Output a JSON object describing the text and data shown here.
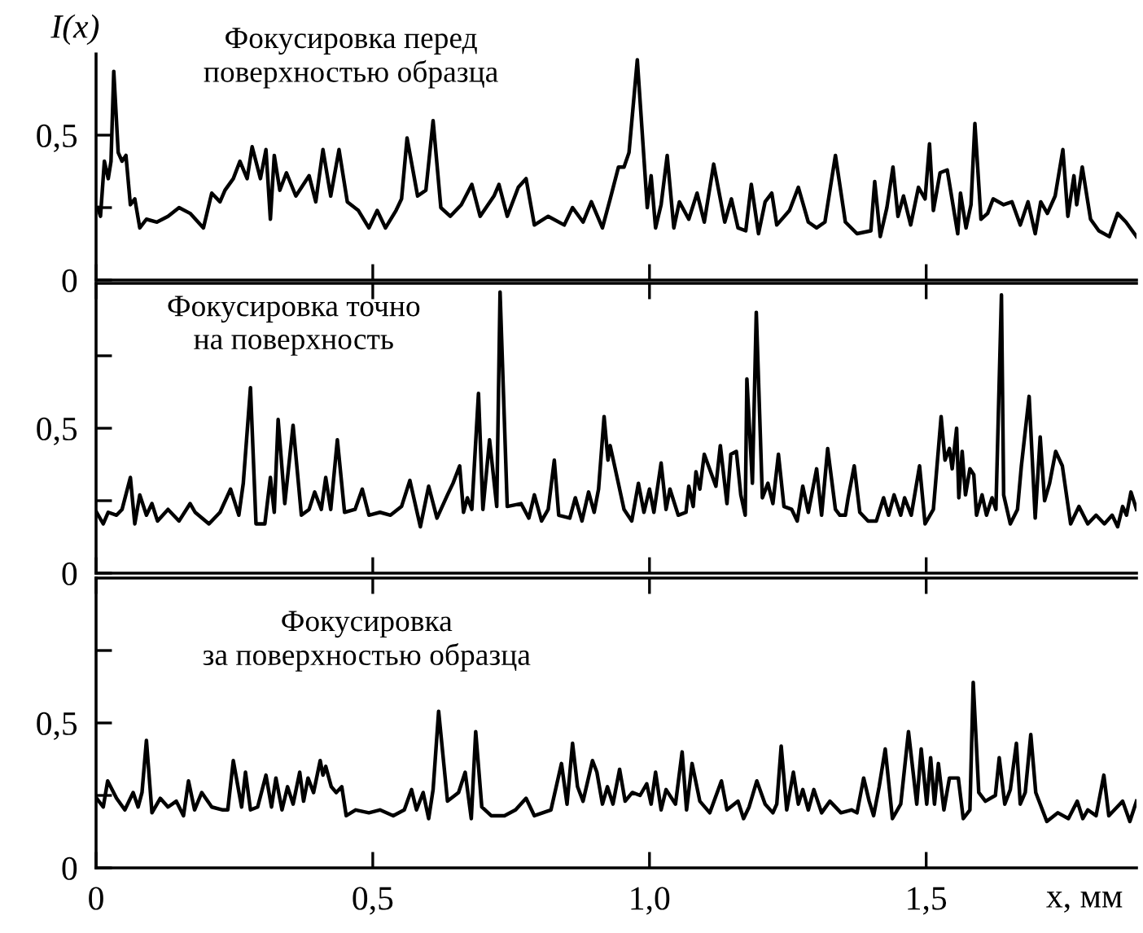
{
  "chart_data": [
    {
      "type": "line",
      "ylabel": "I(x)",
      "annotations": [
        "Фокусировка перед\nповерхностью образца"
      ],
      "xlim": [
        0,
        1.88
      ],
      "ylim": [
        0,
        0.78
      ],
      "xticks": [
        {
          "value": 0,
          "label": null
        },
        {
          "value": 0.5,
          "label": null
        },
        {
          "value": 1.0,
          "label": null
        },
        {
          "value": 1.5,
          "label": null
        }
      ],
      "yticks": [
        0,
        {
          "value": 0.25,
          "label": null
        },
        {
          "value": 0.5,
          "label": "0,5"
        }
      ],
      "tick_labels": "y",
      "series": [
        {
          "color": "#000000",
          "x": [
            0.003,
            0.008,
            0.015,
            0.022,
            0.027,
            0.032,
            0.04,
            0.047,
            0.054,
            0.062,
            0.07,
            0.079,
            0.091,
            0.11,
            0.13,
            0.15,
            0.17,
            0.194,
            0.209,
            0.224,
            0.233,
            0.248,
            0.26,
            0.273,
            0.282,
            0.297,
            0.307,
            0.315,
            0.322,
            0.332,
            0.344,
            0.361,
            0.385,
            0.397,
            0.41,
            0.424,
            0.439,
            0.454,
            0.474,
            0.493,
            0.508,
            0.523,
            0.542,
            0.552,
            0.562,
            0.581,
            0.596,
            0.609,
            0.623,
            0.64,
            0.66,
            0.679,
            0.694,
            0.719,
            0.728,
            0.743,
            0.763,
            0.777,
            0.792,
            0.817,
            0.846,
            0.861,
            0.88,
            0.895,
            0.915,
            0.929,
            0.944,
            0.954,
            0.963,
            0.978,
            0.996,
            1.003,
            1.011,
            1.021,
            1.032,
            1.044,
            1.054,
            1.071,
            1.086,
            1.099,
            1.116,
            1.136,
            1.148,
            1.16,
            1.174,
            1.184,
            1.197,
            1.209,
            1.221,
            1.23,
            1.253,
            1.269,
            1.287,
            1.302,
            1.317,
            1.336,
            1.354,
            1.375,
            1.4,
            1.407,
            1.417,
            1.429,
            1.44,
            1.449,
            1.459,
            1.472,
            1.486,
            1.498,
            1.506,
            1.513,
            1.525,
            1.538,
            1.557,
            1.562,
            1.572,
            1.581,
            1.588,
            1.599,
            1.611,
            1.621,
            1.64,
            1.655,
            1.67,
            1.684,
            1.697,
            1.707,
            1.719,
            1.733,
            1.747,
            1.756,
            1.767,
            1.772,
            1.782,
            1.797,
            1.812,
            1.831,
            1.846,
            1.861,
            1.88
          ],
          "values": [
            0.25,
            0.22,
            0.41,
            0.35,
            0.41,
            0.72,
            0.44,
            0.41,
            0.43,
            0.26,
            0.28,
            0.18,
            0.21,
            0.2,
            0.22,
            0.25,
            0.23,
            0.18,
            0.3,
            0.27,
            0.31,
            0.35,
            0.41,
            0.35,
            0.46,
            0.35,
            0.45,
            0.21,
            0.43,
            0.31,
            0.37,
            0.29,
            0.36,
            0.27,
            0.45,
            0.29,
            0.45,
            0.27,
            0.24,
            0.18,
            0.24,
            0.18,
            0.24,
            0.28,
            0.49,
            0.29,
            0.31,
            0.55,
            0.25,
            0.22,
            0.26,
            0.33,
            0.22,
            0.29,
            0.33,
            0.22,
            0.32,
            0.35,
            0.19,
            0.22,
            0.19,
            0.25,
            0.2,
            0.27,
            0.18,
            0.28,
            0.39,
            0.39,
            0.44,
            0.76,
            0.25,
            0.36,
            0.18,
            0.26,
            0.43,
            0.18,
            0.27,
            0.21,
            0.3,
            0.2,
            0.4,
            0.2,
            0.28,
            0.18,
            0.17,
            0.33,
            0.16,
            0.27,
            0.3,
            0.19,
            0.24,
            0.32,
            0.2,
            0.18,
            0.2,
            0.43,
            0.2,
            0.16,
            0.17,
            0.34,
            0.15,
            0.25,
            0.39,
            0.22,
            0.29,
            0.19,
            0.32,
            0.28,
            0.47,
            0.24,
            0.37,
            0.38,
            0.16,
            0.3,
            0.18,
            0.26,
            0.54,
            0.21,
            0.23,
            0.28,
            0.26,
            0.27,
            0.19,
            0.27,
            0.16,
            0.27,
            0.23,
            0.29,
            0.45,
            0.22,
            0.36,
            0.26,
            0.39,
            0.21,
            0.17,
            0.15,
            0.23,
            0.2,
            0.15
          ]
        }
      ]
    },
    {
      "type": "line",
      "annotations": [
        "Фокусировка точно\nна поверхность"
      ],
      "xlim": [
        0,
        1.88
      ],
      "ylim": [
        0,
        1.0
      ],
      "xticks": [
        {
          "value": 0,
          "label": null
        },
        {
          "value": 0.5,
          "label": null
        },
        {
          "value": 1.0,
          "label": null
        },
        {
          "value": 1.5,
          "label": null
        }
      ],
      "yticks": [
        0,
        {
          "value": 0.25,
          "label": null
        },
        {
          "value": 0.5,
          "label": "0,5"
        },
        {
          "value": 0.75,
          "label": null
        }
      ],
      "tick_labels": "y",
      "series": [
        {
          "color": "#000000",
          "x": [
            0.001,
            0.013,
            0.022,
            0.037,
            0.047,
            0.062,
            0.07,
            0.079,
            0.091,
            0.101,
            0.111,
            0.13,
            0.15,
            0.17,
            0.179,
            0.204,
            0.224,
            0.243,
            0.258,
            0.266,
            0.279,
            0.289,
            0.305,
            0.315,
            0.322,
            0.329,
            0.341,
            0.356,
            0.371,
            0.385,
            0.395,
            0.407,
            0.415,
            0.424,
            0.436,
            0.449,
            0.468,
            0.481,
            0.493,
            0.513,
            0.532,
            0.552,
            0.567,
            0.586,
            0.601,
            0.616,
            0.635,
            0.645,
            0.657,
            0.664,
            0.671,
            0.679,
            0.691,
            0.699,
            0.711,
            0.724,
            0.73,
            0.743,
            0.768,
            0.782,
            0.792,
            0.805,
            0.817,
            0.828,
            0.836,
            0.856,
            0.866,
            0.878,
            0.89,
            0.9,
            0.908,
            0.918,
            0.925,
            0.929,
            0.954,
            0.968,
            0.98,
            0.99,
            1.0,
            1.008,
            1.021,
            1.03,
            1.037,
            1.052,
            1.066,
            1.071,
            1.079,
            1.084,
            1.091,
            1.099,
            1.12,
            1.128,
            1.14,
            1.147,
            1.157,
            1.165,
            1.173,
            1.176,
            1.186,
            1.193,
            1.204,
            1.214,
            1.223,
            1.233,
            1.243,
            1.257,
            1.267,
            1.277,
            1.287,
            1.302,
            1.311,
            1.322,
            1.336,
            1.344,
            1.354,
            1.359,
            1.37,
            1.38,
            1.395,
            1.41,
            1.423,
            1.432,
            1.442,
            1.454,
            1.461,
            1.473,
            1.488,
            1.498,
            1.513,
            1.527,
            1.534,
            1.542,
            1.547,
            1.555,
            1.559,
            1.565,
            1.571,
            1.579,
            1.586,
            1.591,
            1.601,
            1.609,
            1.619,
            1.626,
            1.636,
            1.64,
            1.652,
            1.665,
            1.672,
            1.686,
            1.697,
            1.706,
            1.714,
            1.723,
            1.734,
            1.746,
            1.761,
            1.776,
            1.792,
            1.807,
            1.822,
            1.836,
            1.846,
            1.855,
            1.862,
            1.87,
            1.88
          ],
          "values": [
            0.21,
            0.17,
            0.21,
            0.2,
            0.22,
            0.33,
            0.17,
            0.27,
            0.2,
            0.24,
            0.18,
            0.22,
            0.18,
            0.24,
            0.21,
            0.17,
            0.21,
            0.29,
            0.2,
            0.31,
            0.64,
            0.17,
            0.17,
            0.33,
            0.21,
            0.53,
            0.24,
            0.51,
            0.2,
            0.22,
            0.28,
            0.22,
            0.33,
            0.22,
            0.46,
            0.21,
            0.22,
            0.29,
            0.2,
            0.21,
            0.2,
            0.23,
            0.32,
            0.16,
            0.3,
            0.19,
            0.27,
            0.31,
            0.37,
            0.21,
            0.26,
            0.22,
            0.62,
            0.22,
            0.46,
            0.23,
            0.97,
            0.23,
            0.24,
            0.19,
            0.27,
            0.18,
            0.22,
            0.39,
            0.2,
            0.19,
            0.26,
            0.18,
            0.28,
            0.21,
            0.29,
            0.54,
            0.39,
            0.44,
            0.22,
            0.18,
            0.31,
            0.21,
            0.29,
            0.21,
            0.38,
            0.22,
            0.29,
            0.2,
            0.21,
            0.3,
            0.23,
            0.35,
            0.29,
            0.41,
            0.3,
            0.44,
            0.24,
            0.41,
            0.42,
            0.27,
            0.2,
            0.67,
            0.31,
            0.9,
            0.26,
            0.31,
            0.24,
            0.41,
            0.23,
            0.22,
            0.18,
            0.3,
            0.21,
            0.36,
            0.2,
            0.43,
            0.22,
            0.2,
            0.2,
            0.26,
            0.37,
            0.21,
            0.18,
            0.18,
            0.26,
            0.2,
            0.27,
            0.2,
            0.26,
            0.2,
            0.37,
            0.17,
            0.22,
            0.54,
            0.39,
            0.43,
            0.36,
            0.5,
            0.26,
            0.42,
            0.27,
            0.36,
            0.34,
            0.2,
            0.27,
            0.2,
            0.26,
            0.22,
            0.96,
            0.27,
            0.17,
            0.22,
            0.37,
            0.61,
            0.19,
            0.47,
            0.25,
            0.31,
            0.42,
            0.37,
            0.17,
            0.23,
            0.17,
            0.2,
            0.17,
            0.2,
            0.16,
            0.23,
            0.2,
            0.28,
            0.22
          ]
        }
      ]
    },
    {
      "type": "line",
      "xlabel": "x, мм",
      "annotations": [
        "Фокусировка\nза поверхностью образца"
      ],
      "xlim": [
        0,
        1.88
      ],
      "ylim": [
        0,
        1.0
      ],
      "xticks": [
        {
          "value": 0,
          "label": "0"
        },
        {
          "value": 0.5,
          "label": "0,5"
        },
        {
          "value": 1.0,
          "label": "1,0"
        },
        {
          "value": 1.5,
          "label": "1,5"
        }
      ],
      "yticks": [
        {
          "value": 0,
          "label": "0"
        },
        {
          "value": 0.25,
          "label": null
        },
        {
          "value": 0.5,
          "label": "0,5"
        },
        {
          "value": 0.75,
          "label": null
        }
      ],
      "series": [
        {
          "color": "#000000",
          "x": [
            0.001,
            0.013,
            0.021,
            0.037,
            0.052,
            0.067,
            0.076,
            0.083,
            0.091,
            0.101,
            0.116,
            0.13,
            0.145,
            0.158,
            0.167,
            0.178,
            0.191,
            0.209,
            0.229,
            0.238,
            0.248,
            0.263,
            0.27,
            0.279,
            0.292,
            0.307,
            0.317,
            0.325,
            0.336,
            0.346,
            0.356,
            0.368,
            0.375,
            0.383,
            0.393,
            0.405,
            0.41,
            0.415,
            0.425,
            0.434,
            0.444,
            0.452,
            0.469,
            0.493,
            0.513,
            0.537,
            0.557,
            0.57,
            0.579,
            0.591,
            0.601,
            0.609,
            0.619,
            0.635,
            0.655,
            0.667,
            0.678,
            0.686,
            0.697,
            0.714,
            0.738,
            0.758,
            0.777,
            0.792,
            0.822,
            0.841,
            0.851,
            0.861,
            0.87,
            0.88,
            0.897,
            0.905,
            0.915,
            0.924,
            0.934,
            0.946,
            0.956,
            0.969,
            0.983,
            0.995,
            1.003,
            1.011,
            1.021,
            1.03,
            1.047,
            1.059,
            1.067,
            1.077,
            1.091,
            1.109,
            1.13,
            1.14,
            1.16,
            1.17,
            1.18,
            1.194,
            1.209,
            1.223,
            1.23,
            1.238,
            1.248,
            1.26,
            1.269,
            1.277,
            1.287,
            1.297,
            1.311,
            1.326,
            1.346,
            1.365,
            1.375,
            1.387,
            1.397,
            1.405,
            1.415,
            1.426,
            1.439,
            1.454,
            1.468,
            1.483,
            1.491,
            1.501,
            1.508,
            1.515,
            1.522,
            1.532,
            1.542,
            1.558,
            1.567,
            1.579,
            1.585,
            1.595,
            1.607,
            1.625,
            1.632,
            1.642,
            1.652,
            1.663,
            1.67,
            1.679,
            1.689,
            1.698,
            1.718,
            1.738,
            1.757,
            1.773,
            1.783,
            1.792,
            1.807,
            1.821,
            1.83,
            1.845,
            1.855,
            1.868,
            1.88
          ],
          "values": [
            0.24,
            0.21,
            0.3,
            0.24,
            0.2,
            0.26,
            0.21,
            0.26,
            0.44,
            0.19,
            0.24,
            0.21,
            0.23,
            0.18,
            0.3,
            0.2,
            0.26,
            0.21,
            0.2,
            0.2,
            0.37,
            0.21,
            0.33,
            0.2,
            0.21,
            0.32,
            0.21,
            0.31,
            0.2,
            0.28,
            0.22,
            0.33,
            0.23,
            0.31,
            0.26,
            0.37,
            0.32,
            0.35,
            0.28,
            0.26,
            0.28,
            0.18,
            0.2,
            0.19,
            0.2,
            0.18,
            0.2,
            0.27,
            0.2,
            0.26,
            0.17,
            0.27,
            0.54,
            0.23,
            0.26,
            0.33,
            0.17,
            0.47,
            0.21,
            0.18,
            0.18,
            0.2,
            0.24,
            0.18,
            0.2,
            0.36,
            0.22,
            0.43,
            0.28,
            0.23,
            0.37,
            0.33,
            0.22,
            0.28,
            0.22,
            0.34,
            0.23,
            0.26,
            0.25,
            0.29,
            0.22,
            0.33,
            0.2,
            0.27,
            0.22,
            0.4,
            0.2,
            0.36,
            0.23,
            0.19,
            0.3,
            0.2,
            0.23,
            0.17,
            0.21,
            0.3,
            0.22,
            0.19,
            0.22,
            0.42,
            0.2,
            0.33,
            0.22,
            0.27,
            0.2,
            0.27,
            0.19,
            0.23,
            0.19,
            0.2,
            0.19,
            0.31,
            0.23,
            0.18,
            0.28,
            0.41,
            0.17,
            0.22,
            0.47,
            0.22,
            0.41,
            0.22,
            0.38,
            0.22,
            0.36,
            0.2,
            0.31,
            0.31,
            0.17,
            0.2,
            0.64,
            0.26,
            0.23,
            0.25,
            0.38,
            0.22,
            0.27,
            0.43,
            0.22,
            0.26,
            0.46,
            0.26,
            0.16,
            0.19,
            0.17,
            0.23,
            0.17,
            0.2,
            0.18,
            0.32,
            0.18,
            0.21,
            0.23,
            0.16,
            0.23
          ]
        }
      ]
    }
  ]
}
